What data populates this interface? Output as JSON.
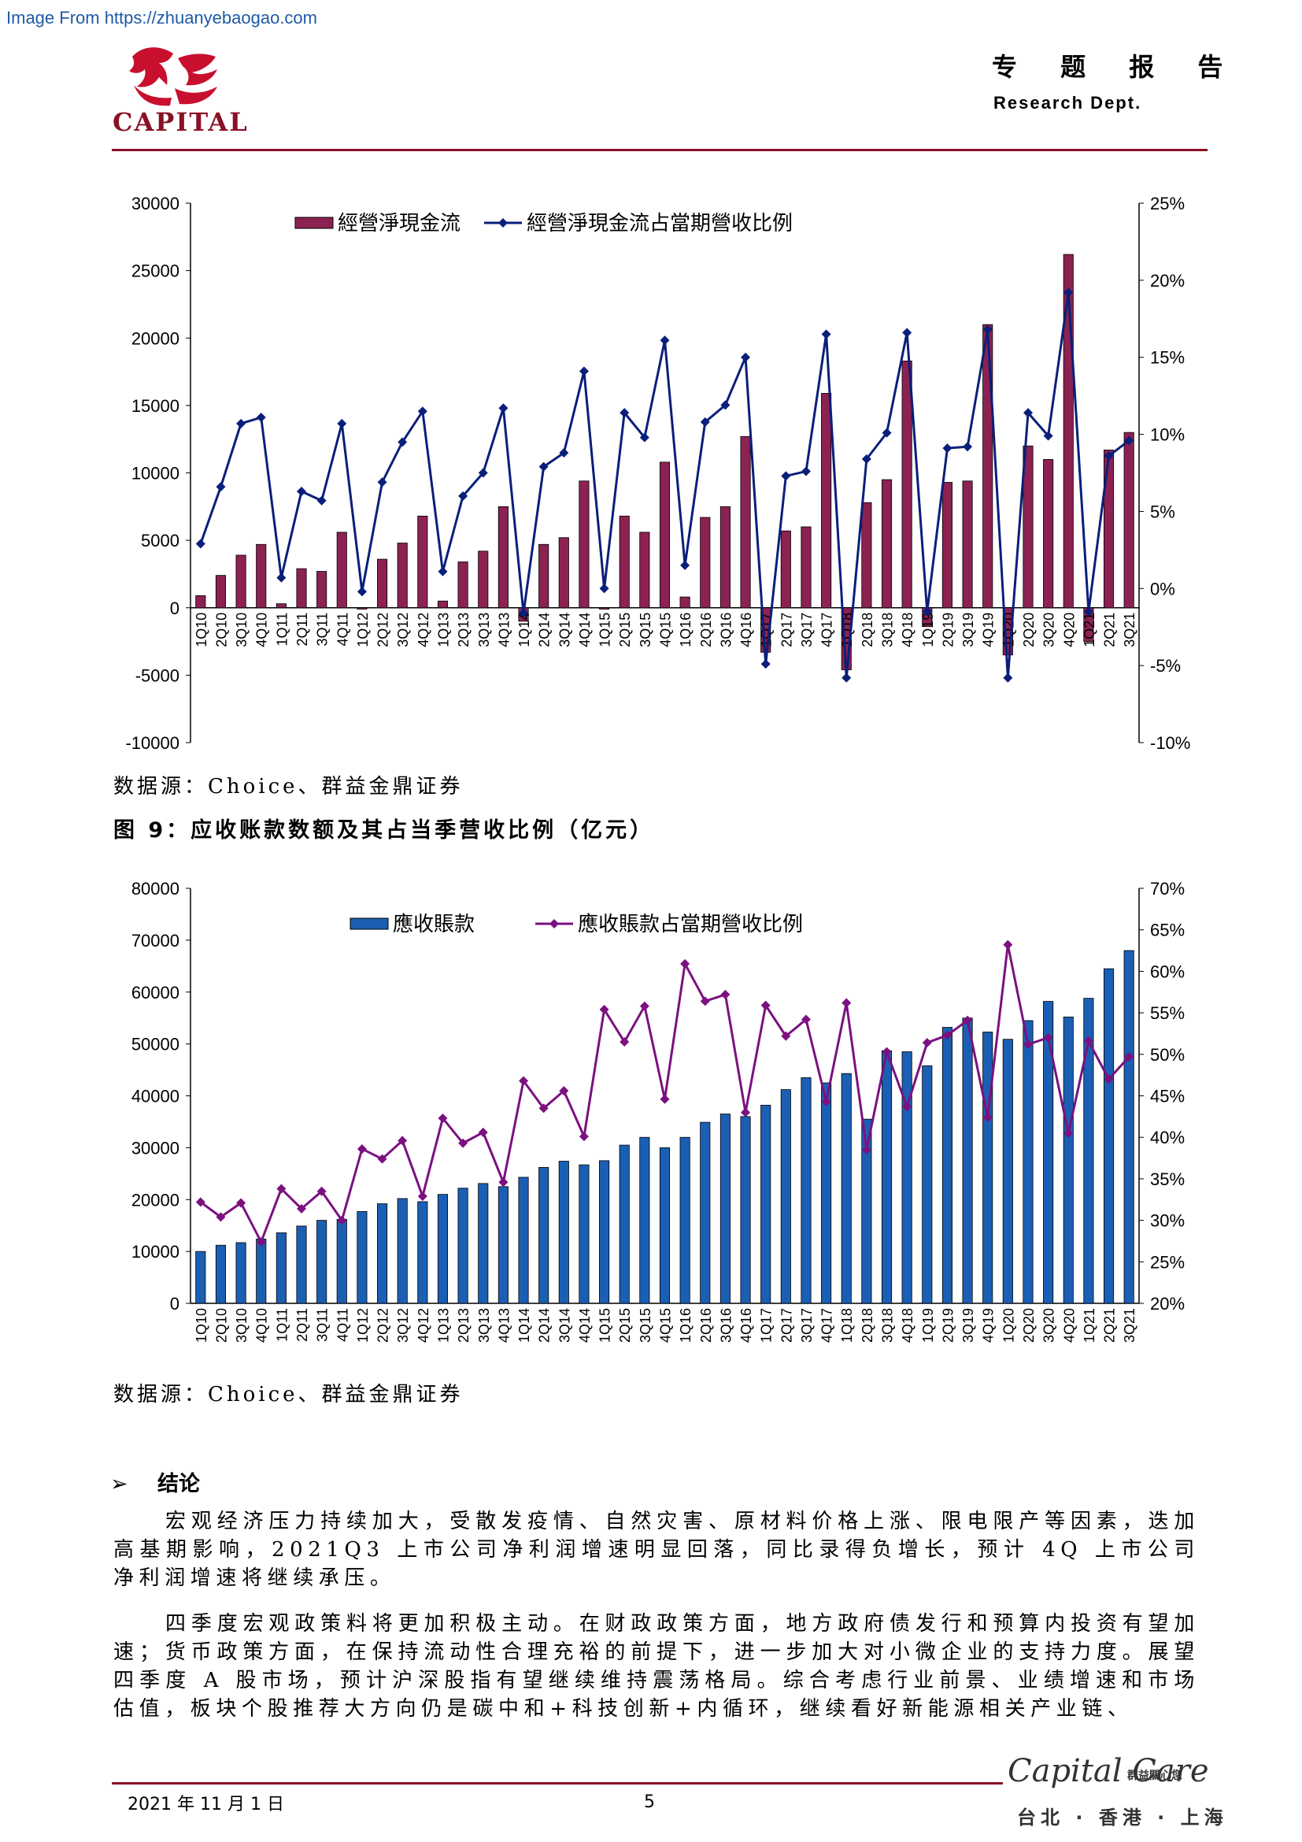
{
  "watermark": "Image From https://zhuanyebaogao.com",
  "header": {
    "logo_text": "CAPITAL",
    "title": "专 题 报 告",
    "subtitle": "Research Dept.",
    "brand_color": "#8a1026"
  },
  "chart1_source": "数据源：Choice、群益金鼎证券",
  "figure9_title": "图 9：应收账款数额及其占当季营收比例（亿元）",
  "chart2_source": "数据源：Choice、群益金鼎证券",
  "chart_data": [
    {
      "type": "bar",
      "title": "",
      "categories": [
        "1Q10",
        "2Q10",
        "3Q10",
        "4Q10",
        "1Q11",
        "2Q11",
        "3Q11",
        "4Q11",
        "1Q12",
        "2Q12",
        "3Q12",
        "4Q12",
        "1Q13",
        "2Q13",
        "3Q13",
        "4Q13",
        "1Q14",
        "2Q14",
        "3Q14",
        "4Q14",
        "1Q15",
        "2Q15",
        "3Q15",
        "4Q15",
        "1Q16",
        "2Q16",
        "3Q16",
        "4Q16",
        "1Q17",
        "2Q17",
        "3Q17",
        "4Q17",
        "1Q18",
        "2Q18",
        "3Q18",
        "4Q18",
        "1Q19",
        "2Q19",
        "3Q19",
        "4Q19",
        "1Q20",
        "2Q20",
        "3Q20",
        "4Q20",
        "1Q21",
        "2Q21",
        "3Q21"
      ],
      "series": [
        {
          "name": "經營淨現金流",
          "kind": "bar",
          "axis": "left",
          "color": "#8b2252",
          "values": [
            900,
            2400,
            3900,
            4700,
            300,
            2900,
            2700,
            5600,
            -100,
            3600,
            4800,
            6800,
            500,
            3400,
            4200,
            7500,
            -1000,
            4700,
            5200,
            9400,
            -100,
            6800,
            5600,
            10800,
            800,
            6700,
            7500,
            12700,
            -3300,
            5700,
            6000,
            15900,
            -4600,
            7800,
            9500,
            18300,
            -1400,
            9300,
            9400,
            21000,
            -3500,
            12000,
            11000,
            26200,
            -2500,
            11700,
            13000
          ]
        },
        {
          "name": "經營淨現金流占當期營收比例",
          "kind": "line",
          "axis": "right",
          "color": "#0a1f7a",
          "values": [
            2.9,
            6.6,
            10.7,
            11.1,
            0.7,
            6.3,
            5.7,
            10.7,
            -0.2,
            6.9,
            9.5,
            11.5,
            1.1,
            6.0,
            7.5,
            11.7,
            -1.6,
            7.9,
            8.8,
            14.1,
            0.0,
            11.4,
            9.8,
            16.1,
            1.5,
            10.8,
            11.9,
            15.0,
            -4.9,
            7.3,
            7.6,
            16.5,
            -5.8,
            8.4,
            10.1,
            16.6,
            -1.5,
            9.1,
            9.2,
            16.8,
            -5.8,
            11.4,
            9.9,
            19.2,
            -1.5,
            8.6,
            9.6
          ]
        }
      ],
      "y_left": {
        "min": -10000,
        "max": 30000,
        "ticks": [
          "-10000",
          "-5000",
          "0",
          "5000",
          "10000",
          "15000",
          "20000",
          "25000",
          "30000"
        ]
      },
      "y_right": {
        "min": -10,
        "max": 25,
        "ticks": [
          "-10%",
          "-5%",
          "0%",
          "5%",
          "10%",
          "15%",
          "20%",
          "25%"
        ]
      },
      "legend_placement": "top",
      "grid": false
    },
    {
      "type": "bar",
      "title": "",
      "categories": [
        "1Q10",
        "2Q10",
        "3Q10",
        "4Q10",
        "1Q11",
        "2Q11",
        "3Q11",
        "4Q11",
        "1Q12",
        "2Q12",
        "3Q12",
        "4Q12",
        "1Q13",
        "2Q13",
        "3Q13",
        "4Q13",
        "1Q14",
        "2Q14",
        "3Q14",
        "4Q14",
        "1Q15",
        "2Q15",
        "3Q15",
        "4Q15",
        "1Q16",
        "2Q16",
        "3Q16",
        "4Q16",
        "1Q17",
        "2Q17",
        "3Q17",
        "4Q17",
        "1Q18",
        "2Q18",
        "3Q18",
        "4Q18",
        "1Q19",
        "2Q19",
        "3Q19",
        "4Q19",
        "1Q20",
        "2Q20",
        "3Q20",
        "4Q20",
        "1Q21",
        "2Q21",
        "3Q21"
      ],
      "series": [
        {
          "name": "應收賬款",
          "kind": "bar",
          "axis": "left",
          "color": "#1b5fb4",
          "values": [
            10000,
            11200,
            11700,
            12400,
            13600,
            14900,
            16000,
            16200,
            17700,
            19200,
            20200,
            19600,
            21000,
            22200,
            23100,
            22500,
            24300,
            26200,
            27400,
            26700,
            27500,
            30500,
            32000,
            30000,
            32000,
            34900,
            36500,
            36000,
            38200,
            41200,
            43500,
            42500,
            44300,
            35500,
            48700,
            48500,
            45800,
            53200,
            55000,
            52300,
            50900,
            54500,
            58200,
            55200,
            58800,
            64500,
            68000
          ]
        },
        {
          "name": "應收賬款占當期營收比例",
          "kind": "line",
          "axis": "right",
          "color": "#7b1180",
          "values": [
            32.2,
            30.4,
            32.1,
            27.4,
            33.8,
            31.4,
            33.5,
            30.0,
            38.6,
            37.4,
            39.6,
            32.9,
            42.3,
            39.3,
            40.6,
            34.6,
            46.8,
            43.5,
            45.6,
            40.1,
            55.4,
            51.5,
            55.8,
            44.6,
            60.9,
            56.4,
            57.2,
            43.0,
            55.9,
            52.2,
            54.2,
            44.3,
            56.2,
            38.5,
            50.3,
            43.7,
            51.4,
            52.3,
            54.1,
            42.4,
            63.2,
            51.2,
            52.0,
            40.5,
            51.6,
            47.0,
            49.7
          ]
        }
      ],
      "y_left": {
        "min": 0,
        "max": 80000,
        "ticks": [
          "0",
          "10000",
          "20000",
          "30000",
          "40000",
          "50000",
          "60000",
          "70000",
          "80000"
        ]
      },
      "y_right": {
        "min": 20,
        "max": 70,
        "ticks": [
          "20%",
          "25%",
          "30%",
          "35%",
          "40%",
          "45%",
          "50%",
          "55%",
          "60%",
          "65%",
          "70%"
        ]
      },
      "legend_placement": "top",
      "grid": false
    }
  ],
  "section": {
    "arrow": "➢",
    "title": "结论"
  },
  "paragraphs": [
    "宏观经济压力持续加大，受散发疫情、自然灾害、原材料价格上涨、限电限产等因素，迭加高基期影响，2021Q3 上市公司净利润增速明显回落，同比录得负增长，预计 4Q 上市公司净利润增速将继续承压。",
    "四季度宏观政策料将更加积极主动。在财政政策方面，地方政府债发行和预算内投资有望加速；货币政策方面，在保持流动性合理充裕的前提下，进一步加大对小微企业的支持力度。展望四季度 A 股市场，预计沪深股指有望继续维持震荡格局。综合考虑行业前景、业绩增速和市场估值，板块个股推荐大方向仍是碳中和+科技创新+内循环，继续看好新能源相关产业链、"
  ],
  "footer": {
    "date": "2021 年 11 月 1 日",
    "page": "5",
    "brand": "Capital Care",
    "brand_cn": "群益關心您",
    "cities": "台北 · 香港 · 上海"
  }
}
